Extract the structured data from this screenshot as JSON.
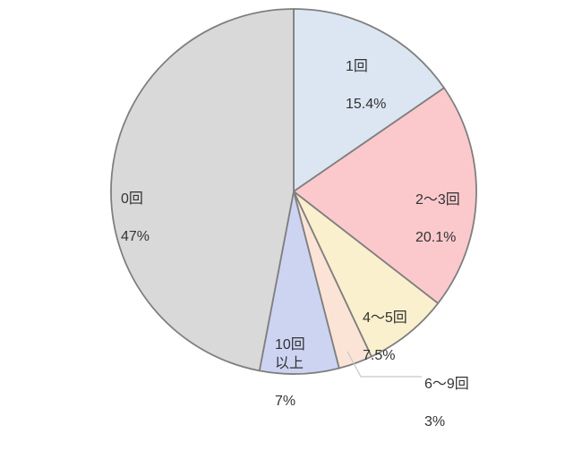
{
  "chart_data": {
    "type": "pie",
    "title": "",
    "unit": "%",
    "direction": "clockwise",
    "start_angle_deg": 0,
    "legend": "none",
    "stroke_color": "#7f7f7f",
    "leader_line_color": "#c8c8c8",
    "background": "#ffffff",
    "slices": [
      {
        "label": "1回",
        "value": 15.4,
        "value_label": "15.4%",
        "color": "#dce6f2"
      },
      {
        "label": "2～3回",
        "value": 20.1,
        "value_label": "20.1%",
        "color": "#fbc9cc"
      },
      {
        "label": "4～5回",
        "value": 7.5,
        "value_label": "7.5%",
        "color": "#faf0cd"
      },
      {
        "label": "6～9回",
        "value": 3,
        "value_label": "3%",
        "color": "#fbe4d6"
      },
      {
        "label": "10回\n以上",
        "value": 7,
        "value_label": "7%",
        "color": "#cdd4f2"
      },
      {
        "label": "0回",
        "value": 47,
        "value_label": "47%",
        "color": "#d9d9d9"
      }
    ]
  }
}
